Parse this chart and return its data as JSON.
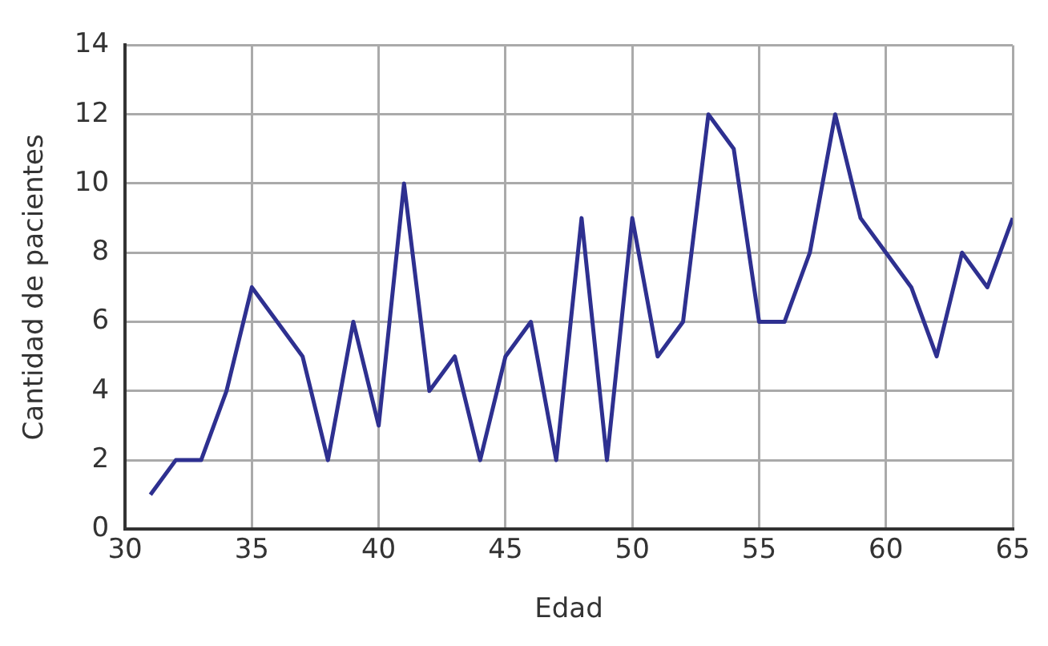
{
  "chart_data": {
    "type": "line",
    "xlabel": "Edad",
    "ylabel": "Cantidad de pacientes",
    "x": [
      31,
      32,
      33,
      34,
      35,
      36,
      37,
      38,
      39,
      40,
      41,
      42,
      43,
      44,
      45,
      46,
      47,
      48,
      49,
      50,
      51,
      52,
      53,
      54,
      55,
      56,
      57,
      58,
      59,
      60,
      61,
      62,
      63,
      64,
      65
    ],
    "series": [
      {
        "color": "#2e3090",
        "values": [
          1,
          2,
          2,
          4,
          7,
          6,
          5,
          2,
          6,
          3,
          10,
          4,
          5,
          2,
          5,
          6,
          2,
          9,
          2,
          9,
          5,
          6,
          12,
          11,
          6,
          6,
          8,
          12,
          9,
          8,
          7,
          5,
          8,
          7,
          9
        ]
      }
    ],
    "xlim": [
      30,
      65
    ],
    "xticks": [
      30,
      35,
      40,
      45,
      50,
      55,
      60,
      65
    ],
    "ylim": [
      0,
      14
    ],
    "yticks": [
      0,
      2,
      4,
      6,
      8,
      10,
      12,
      14
    ],
    "grid": true,
    "legend": false,
    "marker": "none",
    "line_style": "solid"
  }
}
